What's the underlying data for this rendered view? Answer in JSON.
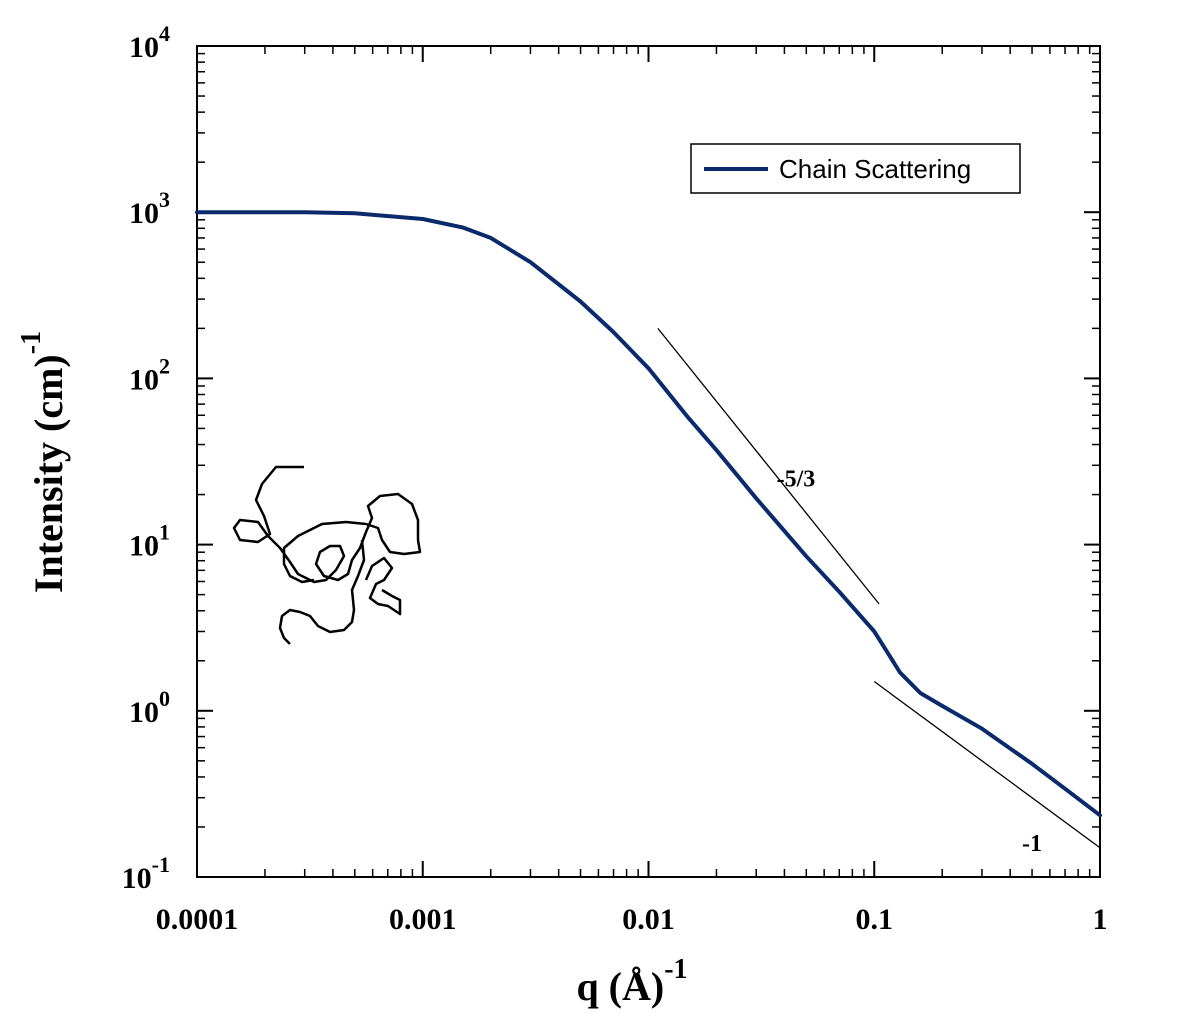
{
  "chart_data": {
    "type": "line",
    "xscale": "log",
    "yscale": "log",
    "xlim": [
      0.0001,
      1
    ],
    "ylim": [
      0.1,
      10000
    ],
    "xlabel": "q (Å)",
    "xlabel_exponent": "-1",
    "ylabel": "Intensity (cm)",
    "ylabel_exponent": "-1",
    "x_ticks": [
      {
        "value": 0.0001,
        "label": "0.0001"
      },
      {
        "value": 0.001,
        "label": "0.001"
      },
      {
        "value": 0.01,
        "label": "0.01"
      },
      {
        "value": 0.1,
        "label": "0.1"
      },
      {
        "value": 1,
        "label": "1"
      }
    ],
    "y_ticks": [
      {
        "value": 0.1,
        "base": "10",
        "exp": "-1"
      },
      {
        "value": 1,
        "base": "10",
        "exp": "0"
      },
      {
        "value": 10,
        "base": "10",
        "exp": "1"
      },
      {
        "value": 100,
        "base": "10",
        "exp": "2"
      },
      {
        "value": 1000,
        "base": "10",
        "exp": "3"
      },
      {
        "value": 10000,
        "base": "10",
        "exp": "4"
      }
    ],
    "legend": {
      "position": "top-right"
    },
    "grid": false,
    "series": [
      {
        "name": "Chain Scattering",
        "color": "#0b2a6b",
        "x": [
          0.0001,
          0.0003,
          0.0005,
          0.001,
          0.0015,
          0.002,
          0.003,
          0.005,
          0.007,
          0.01,
          0.015,
          0.02,
          0.03,
          0.05,
          0.07,
          0.1,
          0.13,
          0.16,
          0.2,
          0.3,
          0.5,
          0.7,
          1.0
        ],
        "y": [
          1000,
          998,
          985,
          910,
          810,
          700,
          500,
          290,
          190,
          115,
          58,
          37,
          19,
          8.5,
          5.2,
          3.0,
          1.7,
          1.28,
          1.07,
          0.78,
          0.48,
          0.34,
          0.235
        ]
      }
    ],
    "annotations": [
      {
        "text": "-5/3",
        "x": 0.045,
        "y": 25,
        "line": {
          "x1": 0.011,
          "y1": 200,
          "x2": 0.105,
          "y2": 4.4
        }
      },
      {
        "text": "-1",
        "x": 0.5,
        "y": 0.16,
        "line": {
          "x1": 0.1,
          "y1": 1.5,
          "x2": 1.0,
          "y2": 0.15
        }
      }
    ]
  }
}
